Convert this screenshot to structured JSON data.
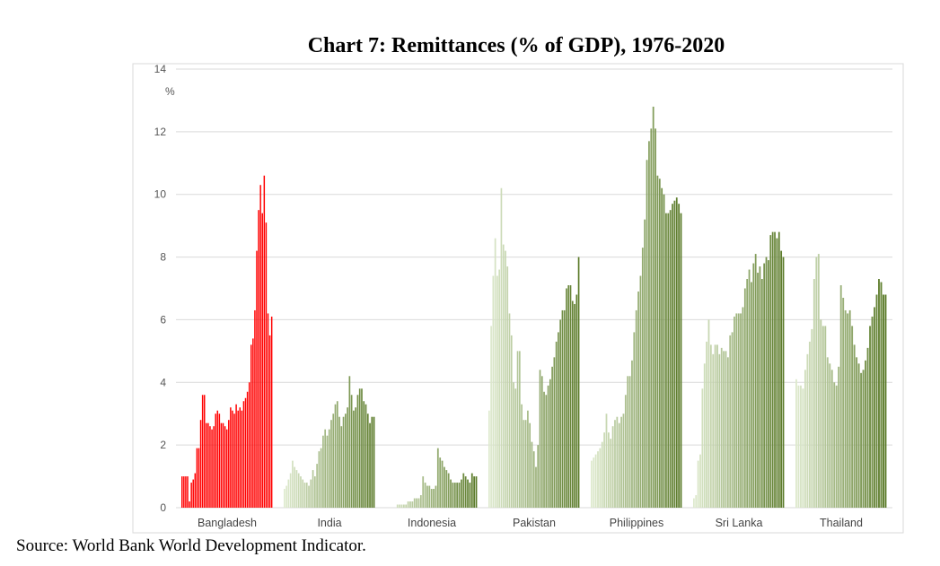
{
  "chart_data": {
    "type": "bar",
    "title": "Chart 7: Remittances (% of GDP), 1976-2020",
    "ylabel": "%",
    "xlabel": "",
    "ylim": [
      0,
      14
    ],
    "yticks": [
      0,
      2,
      4,
      6,
      8,
      10,
      12,
      14
    ],
    "grid": true,
    "legend": "none",
    "years": "1976-2020",
    "groups": [
      {
        "name": "Bangladesh",
        "color": "#ff0000",
        "values": [
          1.0,
          1.0,
          1.0,
          1.0,
          0.2,
          0.8,
          0.9,
          1.1,
          1.9,
          1.9,
          2.8,
          3.6,
          3.6,
          2.7,
          2.7,
          2.6,
          2.5,
          2.6,
          3.0,
          3.1,
          3.0,
          2.7,
          2.7,
          2.6,
          2.5,
          2.8,
          3.2,
          3.1,
          3.0,
          3.3,
          3.1,
          3.2,
          3.1,
          3.4,
          3.5,
          3.7,
          4.0,
          5.2,
          5.4,
          6.3,
          8.2,
          9.5,
          10.3,
          9.4,
          10.6,
          9.1,
          6.2,
          5.5,
          6.1
        ]
      },
      {
        "name": "India",
        "color": "#5a7a28",
        "values": [
          0.6,
          0.7,
          0.9,
          1.1,
          1.5,
          1.3,
          1.2,
          1.1,
          1.0,
          0.9,
          0.8,
          0.8,
          0.7,
          0.9,
          1.2,
          1.0,
          1.4,
          1.8,
          1.9,
          2.3,
          2.5,
          2.3,
          2.5,
          2.8,
          3.0,
          3.3,
          3.4,
          2.9,
          2.6,
          2.9,
          3.0,
          3.2,
          4.2,
          3.6,
          3.1,
          3.2,
          3.6,
          3.8,
          3.8,
          3.4,
          3.3,
          3.0,
          2.7,
          2.9,
          2.9
        ]
      },
      {
        "name": "Indonesia",
        "color": "#5a7a28",
        "values": [
          0.0,
          0.0,
          0.0,
          0.0,
          0.0,
          0.1,
          0.1,
          0.1,
          0.1,
          0.1,
          0.2,
          0.2,
          0.2,
          0.3,
          0.3,
          0.3,
          0.4,
          1.0,
          0.8,
          0.7,
          0.7,
          0.6,
          0.6,
          0.7,
          1.9,
          1.6,
          1.5,
          1.3,
          1.2,
          1.1,
          0.9,
          0.8,
          0.8,
          0.8,
          0.8,
          0.9,
          1.1,
          1.0,
          0.9,
          0.8,
          1.1,
          1.0,
          1.0
        ]
      },
      {
        "name": "Pakistan",
        "color": "#5a7a28",
        "values": [
          3.1,
          5.8,
          7.4,
          8.6,
          7.4,
          7.6,
          10.2,
          8.4,
          8.2,
          7.7,
          6.2,
          5.5,
          4.0,
          3.8,
          5.0,
          5.0,
          3.3,
          2.8,
          2.8,
          3.1,
          2.7,
          2.1,
          1.8,
          1.3,
          2.0,
          4.4,
          4.2,
          3.7,
          3.6,
          3.9,
          4.1,
          4.5,
          4.8,
          5.3,
          5.6,
          6.0,
          6.3,
          6.3,
          7.0,
          7.1,
          7.1,
          6.6,
          6.5,
          6.8,
          8.0
        ]
      },
      {
        "name": "Philippines",
        "color": "#5a7a28",
        "values": [
          1.5,
          1.6,
          1.7,
          1.8,
          1.9,
          2.1,
          2.4,
          3.0,
          2.4,
          2.2,
          2.6,
          2.8,
          2.9,
          2.7,
          2.9,
          3.0,
          3.6,
          4.2,
          4.2,
          4.7,
          5.6,
          6.3,
          6.9,
          7.4,
          8.3,
          9.2,
          11.1,
          11.7,
          12.1,
          12.8,
          12.1,
          10.6,
          10.5,
          10.2,
          10.0,
          9.4,
          9.4,
          9.5,
          9.7,
          9.8,
          9.9,
          9.7,
          9.4
        ]
      },
      {
        "name": "Sri Lanka",
        "color": "#5a7a28",
        "values": [
          0.3,
          0.4,
          1.5,
          1.7,
          3.8,
          4.6,
          5.3,
          6.0,
          5.2,
          4.9,
          5.2,
          5.2,
          4.9,
          5.1,
          5.0,
          5.0,
          4.8,
          5.5,
          5.6,
          6.1,
          6.2,
          6.2,
          6.2,
          6.4,
          7.0,
          7.3,
          7.6,
          7.2,
          7.8,
          8.1,
          7.5,
          7.7,
          7.3,
          7.8,
          8.0,
          7.9,
          8.7,
          8.8,
          8.8,
          8.6,
          8.8,
          8.2,
          8.0
        ]
      },
      {
        "name": "Thailand",
        "color": "#5a7a28",
        "values": [
          4.1,
          3.9,
          3.9,
          3.8,
          4.4,
          4.9,
          5.3,
          5.7,
          7.3,
          8.0,
          8.1,
          6.0,
          5.8,
          5.8,
          4.8,
          4.6,
          4.4,
          4.0,
          3.9,
          4.5,
          7.1,
          6.7,
          6.3,
          6.2,
          6.3,
          5.8,
          5.2,
          4.8,
          4.6,
          4.3,
          4.4,
          4.7,
          5.1,
          5.8,
          6.1,
          6.4,
          6.8,
          7.3,
          7.2,
          6.8,
          6.8
        ]
      }
    ]
  },
  "source": "Source: World Bank World Development Indicator."
}
